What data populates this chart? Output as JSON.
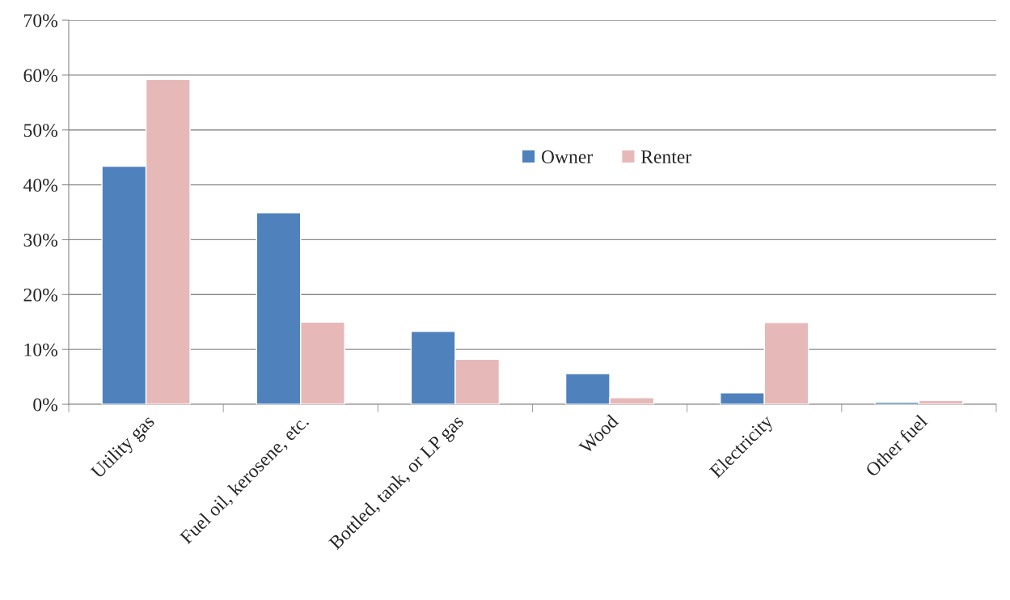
{
  "chart_data": {
    "type": "bar",
    "categories": [
      "Utility gas",
      "Fuel oil, kerosene, etc.",
      "Bottled, tank, or LP gas",
      "Wood",
      "Electricity",
      "Other fuel"
    ],
    "series": [
      {
        "name": "Owner",
        "color": "#4f81bd",
        "values": [
          43.4,
          34.9,
          13.3,
          5.6,
          2.1,
          0.4
        ]
      },
      {
        "name": "Renter",
        "color": "#e6b9b8",
        "values": [
          59.2,
          15.0,
          8.2,
          1.2,
          14.9,
          0.7
        ]
      }
    ],
    "ylim": [
      0,
      70
    ],
    "yticks": [
      {
        "value": 0,
        "label": "0%"
      },
      {
        "value": 10,
        "label": "10%"
      },
      {
        "value": 20,
        "label": "20%"
      },
      {
        "value": 30,
        "label": "30%"
      },
      {
        "value": 40,
        "label": "40%"
      },
      {
        "value": 50,
        "label": "50%"
      },
      {
        "value": 60,
        "label": "60%"
      },
      {
        "value": 70,
        "label": "70%"
      }
    ],
    "grid": "y",
    "legend": "top"
  }
}
